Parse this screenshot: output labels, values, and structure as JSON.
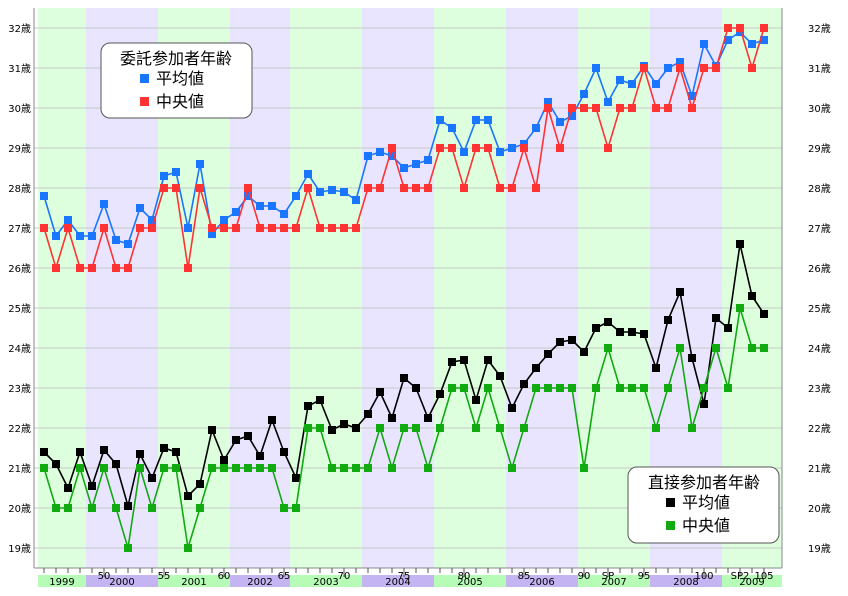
{
  "chart_data": {
    "type": "line",
    "ylim": [
      19,
      32
    ],
    "y_unit": "歳",
    "y_ticks": [
      19,
      20,
      21,
      22,
      23,
      24,
      25,
      26,
      27,
      28,
      29,
      30,
      31,
      32
    ],
    "x": [
      45,
      46,
      47,
      48,
      49,
      50,
      51,
      52,
      53,
      54,
      55,
      56,
      57,
      58,
      59,
      60,
      61,
      62,
      63,
      64,
      65,
      66,
      67,
      68,
      69,
      70,
      71,
      72,
      73,
      74,
      75,
      76,
      77,
      78,
      79,
      80,
      81,
      82,
      83,
      84,
      85,
      86,
      87,
      88,
      89,
      90,
      91,
      92,
      93,
      94,
      95,
      96,
      97,
      98,
      99,
      100,
      101,
      102,
      103,
      104,
      105
    ],
    "x_tick_labels": [
      {
        "x": 50,
        "label": "50"
      },
      {
        "x": 55,
        "label": "55"
      },
      {
        "x": 60,
        "label": "60"
      },
      {
        "x": 65,
        "label": "65"
      },
      {
        "x": 70,
        "label": "70"
      },
      {
        "x": 75,
        "label": "75"
      },
      {
        "x": 80,
        "label": "80"
      },
      {
        "x": 85,
        "label": "85"
      },
      {
        "x": 90,
        "label": "90"
      },
      {
        "x": 92,
        "label": "SP"
      },
      {
        "x": 95,
        "label": "95"
      },
      {
        "x": 100,
        "label": "100"
      },
      {
        "x": 103,
        "label": "SP2"
      },
      {
        "x": 105,
        "label": "105"
      }
    ],
    "year_bands": [
      {
        "label": "1999",
        "start": 44.5,
        "end": 48.5,
        "color": "#ddffdd"
      },
      {
        "label": "2000",
        "start": 48.5,
        "end": 54.5,
        "color": "#eae5ff"
      },
      {
        "label": "2001",
        "start": 54.5,
        "end": 60.5,
        "color": "#ddffdd"
      },
      {
        "label": "2002",
        "start": 60.5,
        "end": 65.5,
        "color": "#eae5ff"
      },
      {
        "label": "2003",
        "start": 65.5,
        "end": 71.5,
        "color": "#ddffdd"
      },
      {
        "label": "2004",
        "start": 71.5,
        "end": 77.5,
        "color": "#eae5ff"
      },
      {
        "label": "2005",
        "start": 77.5,
        "end": 83.5,
        "color": "#ddffdd"
      },
      {
        "label": "2006",
        "start": 83.5,
        "end": 89.5,
        "color": "#eae5ff"
      },
      {
        "label": "2007",
        "start": 89.5,
        "end": 95.5,
        "color": "#ddffdd"
      },
      {
        "label": "2008",
        "start": 95.5,
        "end": 101.5,
        "color": "#eae5ff"
      },
      {
        "label": "2009",
        "start": 101.5,
        "end": 107.5,
        "color": "#ddffdd"
      },
      {
        "label": "",
        "start": 107.5,
        "end": 109.5,
        "color": "#eae5ff"
      }
    ],
    "legends": [
      {
        "title": "委託参加者年齢",
        "position": "top-left",
        "entries": [
          {
            "label": "平均値",
            "color": "#1a75ff"
          },
          {
            "label": "中央値",
            "color": "#ff3333"
          }
        ]
      },
      {
        "title": "直接参加者年齢",
        "position": "bottom-right",
        "entries": [
          {
            "label": "平均値",
            "color": "#000000"
          },
          {
            "label": "中央値",
            "color": "#11aa11"
          }
        ]
      }
    ],
    "series": [
      {
        "group": "委託参加者年齢",
        "name": "平均値",
        "color": "#1a75ff",
        "values": [
          27.8,
          26.8,
          27.2,
          26.8,
          26.8,
          27.6,
          26.7,
          26.6,
          27.5,
          27.2,
          28.3,
          28.4,
          27.0,
          28.6,
          26.85,
          27.2,
          27.4,
          27.8,
          27.55,
          27.55,
          27.35,
          27.8,
          28.35,
          27.9,
          27.95,
          27.9,
          27.7,
          28.8,
          28.9,
          28.8,
          28.5,
          28.6,
          28.7,
          29.7,
          29.5,
          28.9,
          29.7,
          29.7,
          28.9,
          29.0,
          29.1,
          29.5,
          30.15,
          29.65,
          29.8,
          30.35,
          31.0,
          30.15,
          30.7,
          30.6,
          31.05,
          30.6,
          31.0,
          31.15,
          30.3,
          31.6,
          31.05,
          31.7,
          31.9,
          31.6,
          31.7
        ]
      },
      {
        "group": "委託参加者年齢",
        "name": "中央値",
        "color": "#ff3333",
        "values": [
          27,
          26,
          27,
          26,
          26,
          27,
          26,
          26,
          27,
          27,
          28,
          28,
          26,
          28,
          27,
          27,
          27,
          28,
          27,
          27,
          27,
          27,
          28,
          27,
          27,
          27,
          27,
          28,
          28,
          29,
          28,
          28,
          28,
          29,
          29,
          28,
          29,
          29,
          28,
          28,
          29,
          28,
          30,
          29,
          30,
          30,
          30,
          29,
          30,
          30,
          31,
          30,
          30,
          31,
          30,
          31,
          31,
          32,
          32,
          31,
          32
        ]
      },
      {
        "group": "直接参加者年齢",
        "name": "平均値",
        "color": "#000000",
        "values": [
          21.4,
          21.1,
          20.5,
          21.4,
          20.55,
          21.45,
          21.1,
          20.05,
          21.35,
          20.75,
          21.5,
          21.4,
          20.3,
          20.6,
          21.95,
          21.2,
          21.7,
          21.8,
          21.3,
          22.2,
          21.4,
          20.75,
          22.55,
          22.7,
          21.95,
          22.1,
          22.0,
          22.35,
          22.9,
          22.25,
          23.25,
          23.0,
          22.25,
          22.85,
          23.65,
          23.7,
          22.7,
          23.7,
          23.3,
          22.5,
          23.1,
          23.5,
          23.85,
          24.15,
          24.2,
          23.9,
          24.5,
          24.65,
          24.4,
          24.4,
          24.35,
          23.5,
          24.7,
          25.4,
          23.75,
          22.6,
          24.75,
          24.5,
          26.6,
          25.3,
          24.85
        ]
      },
      {
        "group": "直接参加者年齢",
        "name": "中央値",
        "color": "#11aa11",
        "values": [
          21,
          20,
          20,
          21,
          20,
          21,
          20,
          19,
          21,
          20,
          21,
          21,
          19,
          20,
          21,
          21,
          21,
          21,
          21,
          21,
          20,
          20,
          22,
          22,
          21,
          21,
          21,
          21,
          22,
          21,
          22,
          22,
          21,
          22,
          23,
          23,
          22,
          23,
          22,
          21,
          22,
          23,
          23,
          23,
          23,
          21,
          23,
          24,
          23,
          23,
          23,
          22,
          23,
          24,
          22,
          23,
          24,
          23,
          25,
          24,
          24
        ]
      }
    ]
  }
}
